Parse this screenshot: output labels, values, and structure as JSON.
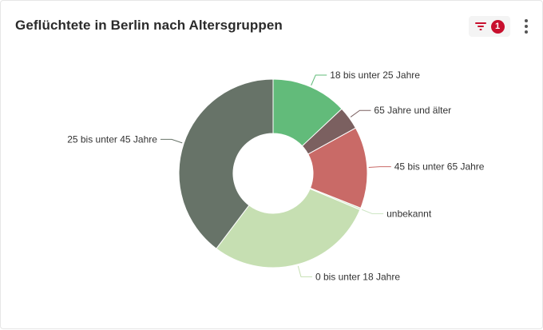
{
  "header": {
    "title": "Geflüchtete in Berlin nach Altersgruppen",
    "filter_icon": "filter-icon",
    "filter_count": "1",
    "more_icon": "more-vertical-icon"
  },
  "chart_data": {
    "type": "pie",
    "donut": true,
    "title": "Geflüchtete in Berlin nach Altersgruppen",
    "slices": [
      {
        "label": "18 bis unter 25 Jahre",
        "value": 13,
        "color": "#62bb7a"
      },
      {
        "label": "65 Jahre und älter",
        "value": 4,
        "color": "#7b6060"
      },
      {
        "label": "45 bis unter 65 Jahre",
        "value": 14,
        "color": "#c96a67"
      },
      {
        "label": "unbekannt",
        "value": 0.3,
        "color": "#cfe6c6"
      },
      {
        "label": "0 bis unter 18 Jahre",
        "value": 29,
        "color": "#c6dfb2"
      },
      {
        "label": "25 bis unter 45 Jahre",
        "value": 39.7,
        "color": "#677368"
      }
    ]
  }
}
